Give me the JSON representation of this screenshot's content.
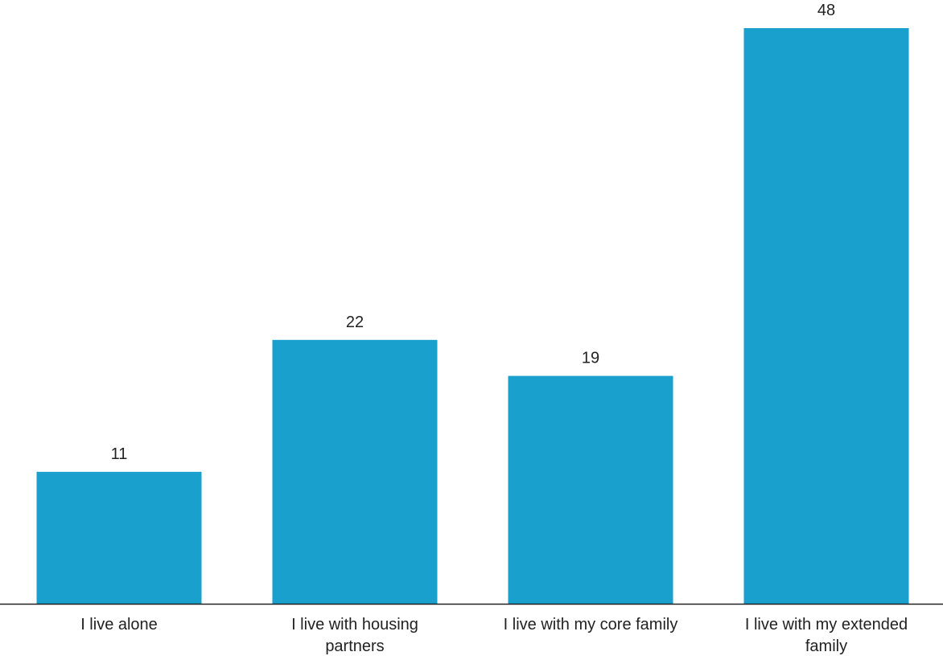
{
  "chart_data": {
    "type": "bar",
    "categories": [
      [
        "I live alone"
      ],
      [
        "I live with housing",
        "partners"
      ],
      [
        "I live with my core family"
      ],
      [
        "I live with my extended",
        "family"
      ]
    ],
    "values": [
      11,
      22,
      19,
      48
    ],
    "title": "",
    "xlabel": "",
    "ylabel": "",
    "ylim": [
      0,
      48
    ],
    "grid": false,
    "legend": "none",
    "show_data_labels": true,
    "bar_color": "#19a0cc",
    "axis_color": "#222222"
  }
}
